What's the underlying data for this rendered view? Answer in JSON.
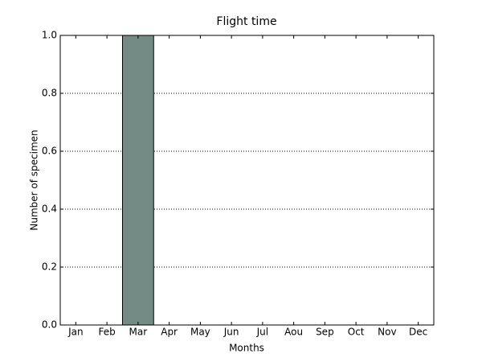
{
  "chart_data": {
    "type": "bar",
    "title": "Flight time",
    "x_label": "Months",
    "y_label": "Number of specimen",
    "categories": [
      "Jan",
      "Feb",
      "Mar",
      "Apr",
      "May",
      "Jun",
      "Jul",
      "Aou",
      "Sep",
      "Oct",
      "Nov",
      "Dec"
    ],
    "values": [
      0,
      0,
      1,
      0,
      0,
      0,
      0,
      0,
      0,
      0,
      0,
      0
    ],
    "color": "#738a85",
    "ylim": [
      0,
      1
    ],
    "yticks": [
      {
        "value": 0,
        "label": "0.0"
      },
      0.2,
      0.4,
      0.6,
      0.8,
      {
        "value": 1,
        "label": "1.0"
      }
    ],
    "grid": true
  }
}
